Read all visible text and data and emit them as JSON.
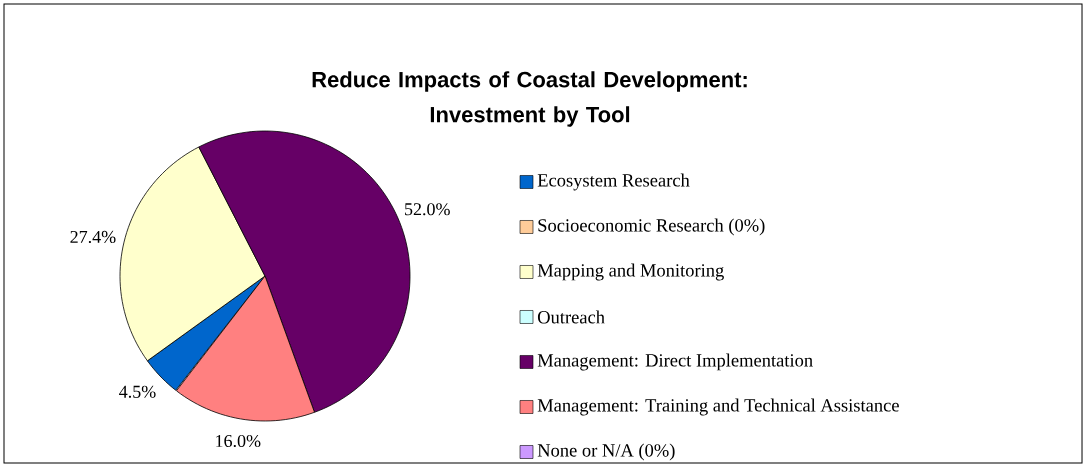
{
  "chart_data": {
    "type": "pie",
    "title": "Reduce Impacts of Coastal Development:\nInvestment by Tool",
    "categories": [
      "Ecosystem Research",
      "Socioeconomic Research (0%)",
      "Mapping and Monitoring",
      "Outreach",
      "Management: Direct Implementation",
      "Management: Training and Technical Assistance",
      "None or N/A (0%)"
    ],
    "values": [
      4.5,
      0,
      27.4,
      0,
      52.0,
      16.0,
      0
    ],
    "colors": [
      "#0066cc",
      "#ffcc99",
      "#ffffcc",
      "#ccffff",
      "#660066",
      "#ff8080",
      "#cc99ff"
    ],
    "value_labels": [
      "4.5%",
      null,
      "27.4%",
      null,
      "52.0%",
      "16.0%",
      null
    ],
    "legend": "right"
  }
}
